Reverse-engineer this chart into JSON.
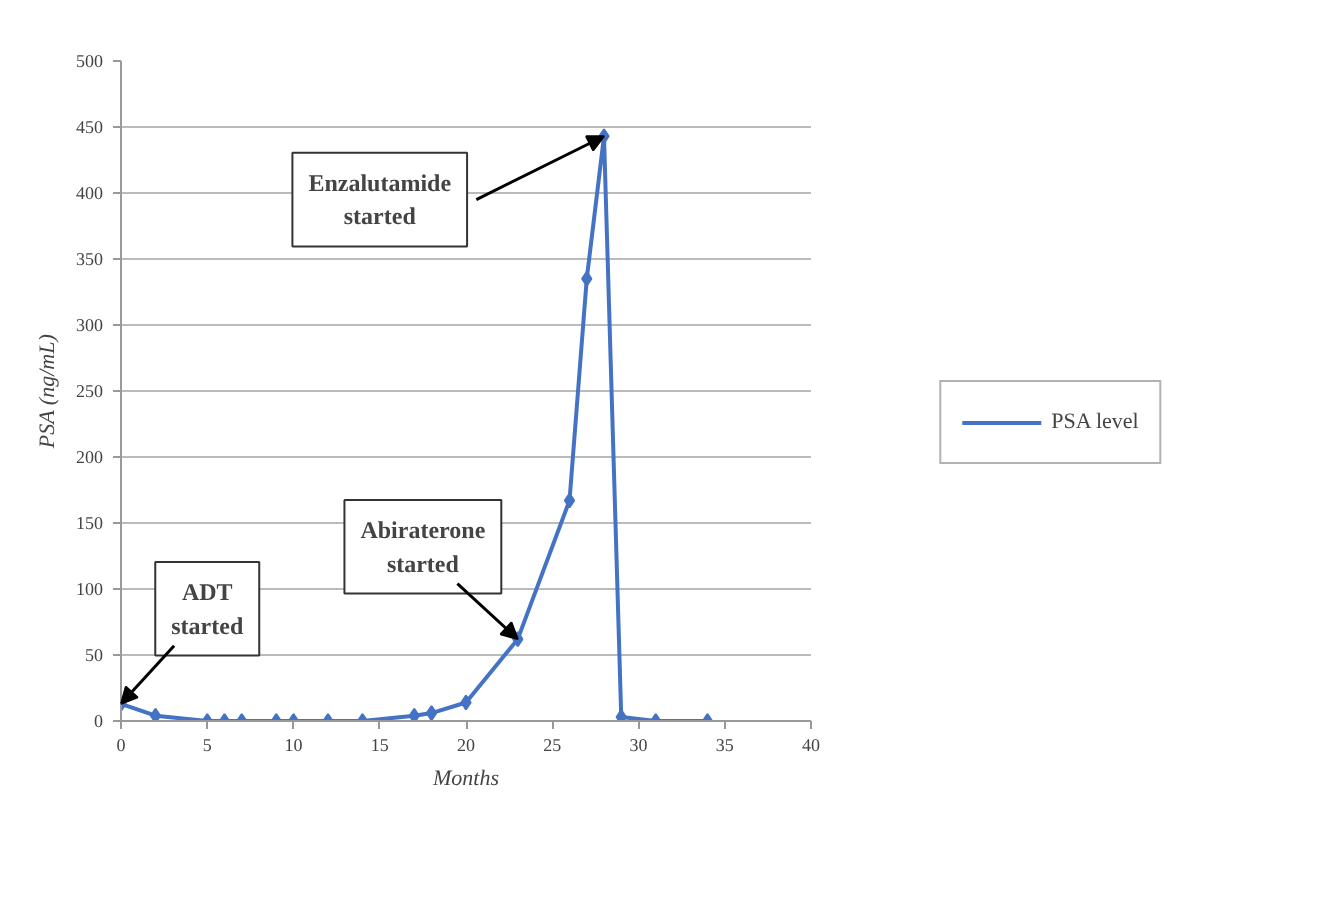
{
  "chart_data": {
    "type": "line",
    "xlabel": "Months",
    "ylabel": "PSA (ng/mL)",
    "x": [
      0,
      2,
      5,
      6,
      7,
      9,
      10,
      12,
      14,
      17,
      18,
      20,
      23,
      26,
      27,
      28,
      29,
      31,
      34
    ],
    "series": [
      {
        "name": "PSA level",
        "color": "#4472c4",
        "values": [
          13,
          4,
          0,
          0,
          0,
          0,
          0,
          0,
          0,
          4,
          6,
          14,
          62,
          167,
          335,
          443,
          3,
          0,
          0
        ]
      }
    ],
    "xlim": [
      0,
      40
    ],
    "xticks": [
      0,
      5,
      10,
      15,
      20,
      25,
      30,
      35,
      40
    ],
    "ylim": [
      0,
      500
    ],
    "yticks": [
      0,
      50,
      100,
      150,
      200,
      250,
      300,
      350,
      400,
      450,
      500
    ],
    "grid": "y",
    "legend": "right",
    "marker": "diamond",
    "line_style": "solid",
    "annotations": [
      {
        "text": "ADT\nstarted",
        "x": 0,
        "y": 13
      },
      {
        "text": "Abiraterone\nstarted",
        "x": 23,
        "y": 62
      },
      {
        "text": "Enzalutamide\nstarted",
        "x": 28,
        "y": 443
      }
    ]
  }
}
